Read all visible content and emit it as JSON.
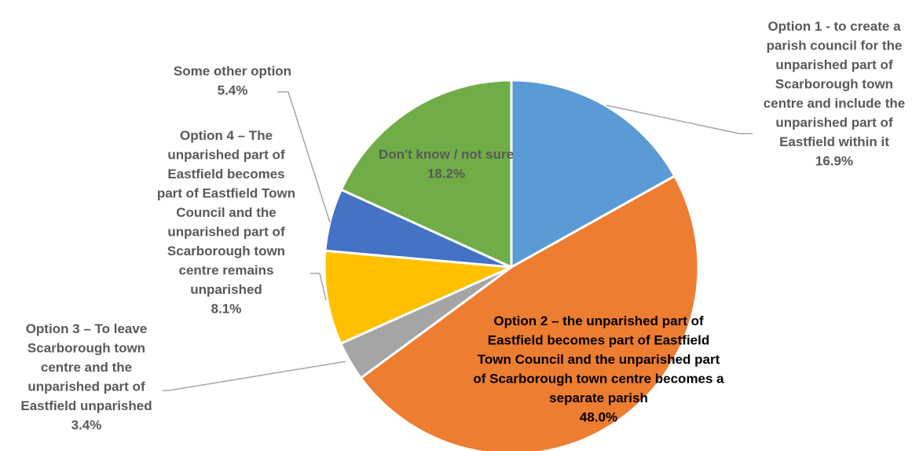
{
  "chart_data": {
    "type": "pie",
    "title": "",
    "start_angle_deg": 0,
    "direction": "clockwise",
    "colors": {
      "option1": "#5B9BD5",
      "option2": "#ED7D31",
      "option3": "#A5A5A5",
      "option4": "#FFC000",
      "other": "#4472C4",
      "dont_know": "#70AD47",
      "leader_line": "#A6A6A6",
      "label_text": "#595959"
    },
    "slices": [
      {
        "key": "option1",
        "value": 16.9,
        "label_lines": [
          "Option 1 - to create a",
          "parish council for the",
          "unparished part of",
          "Scarborough town",
          "centre and include the",
          "unparished part of",
          "Eastfield within it"
        ],
        "value_label": "16.9%"
      },
      {
        "key": "option2",
        "value": 48.0,
        "label_lines": [
          "Option 2 – the unparished part of",
          "Eastfield becomes part of Eastfield",
          "Town Council and the unparished part",
          "of Scarborough town centre becomes a",
          "separate parish"
        ],
        "value_label": "48.0%"
      },
      {
        "key": "option3",
        "value": 3.4,
        "label_lines": [
          "Option 3 – To leave",
          "Scarborough town",
          "centre and the",
          "unparished part of",
          "Eastfield unparished"
        ],
        "value_label": "3.4%"
      },
      {
        "key": "option4",
        "value": 8.1,
        "label_lines": [
          "Option 4 – The",
          "unparished part of",
          "Eastfield becomes",
          "part of Eastfield Town",
          "Council and the",
          "unparished part of",
          "Scarborough town",
          "centre remains",
          "unparished"
        ],
        "value_label": "8.1%"
      },
      {
        "key": "other",
        "value": 5.4,
        "label_lines": [
          "Some other option"
        ],
        "value_label": "5.4%"
      },
      {
        "key": "dont_know",
        "value": 18.2,
        "label_lines": [
          "Don't know / not sure"
        ],
        "value_label": "18.2%"
      }
    ]
  }
}
